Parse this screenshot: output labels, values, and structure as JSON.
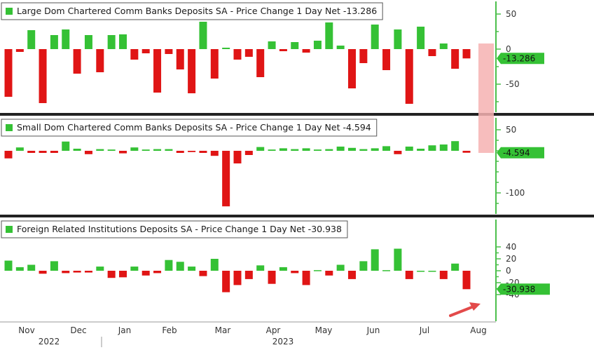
{
  "colors": {
    "positive": "#35c135",
    "negative": "#e01515",
    "axis_text": "#333333",
    "tick": "#4cbf4c",
    "divider": "#222222",
    "highlight": "#f6b2b2",
    "arrow": "#e34a4a"
  },
  "x_axis": {
    "months": [
      "Nov",
      "Dec",
      "Jan",
      "Feb",
      "Mar",
      "Apr",
      "May",
      "Jun",
      "Jul",
      "Aug"
    ],
    "years": [
      "2022",
      "2023"
    ]
  },
  "chart_data": [
    {
      "type": "bar",
      "title": "Large Dom Chartered Comm Banks Deposits SA - Price Change 1 Day Net -13.286",
      "last_value_label": "-13.286",
      "yticks": [
        50,
        0,
        -50
      ],
      "ylim": [
        -90,
        65
      ],
      "values": [
        -68,
        -4,
        27,
        -77,
        20,
        28,
        -35,
        20,
        -33,
        20,
        21,
        -15,
        -6,
        -62,
        -7,
        -29,
        -63,
        39,
        -42,
        2,
        -15,
        -11,
        -40,
        11,
        -3,
        10,
        -5,
        12,
        38,
        5,
        -56,
        -20,
        35,
        -30,
        28,
        -78,
        32,
        -10,
        8,
        -28,
        -13.286
      ]
    },
    {
      "type": "bar",
      "title": "Small Dom Chartered Comm Banks Deposits SA - Price Change 1 Day Net -4.594",
      "last_value_label": "-4.594",
      "yticks": [
        50,
        0,
        -100
      ],
      "ylim": [
        -140,
        60
      ],
      "values": [
        -18,
        8,
        -5,
        -5,
        -5,
        22,
        5,
        -8,
        4,
        3,
        -6,
        8,
        3,
        4,
        4,
        -5,
        -3,
        -5,
        -12,
        -132,
        -30,
        -10,
        9,
        3,
        6,
        4,
        6,
        3,
        4,
        10,
        7,
        4,
        6,
        11,
        -8,
        10,
        5,
        13,
        15,
        23,
        -4.594
      ]
    },
    {
      "type": "bar",
      "title": "Foreign Related Institutions Deposits SA - Price Change 1 Day Net -30.938",
      "last_value_label": "-30.938",
      "yticks": [
        40,
        20,
        0,
        -20,
        -40
      ],
      "ylim": [
        -43,
        43
      ],
      "values": [
        17,
        6,
        10,
        -5,
        16,
        -4,
        -3,
        -3,
        7,
        -12,
        -11,
        7,
        -8,
        -4,
        18,
        15,
        7,
        -9,
        20,
        -36,
        -24,
        -14,
        9,
        -22,
        6,
        -4,
        -24,
        1,
        -8,
        10,
        -14,
        16,
        36,
        1,
        37,
        -14,
        0,
        0,
        -14,
        12,
        -30.938
      ]
    }
  ]
}
